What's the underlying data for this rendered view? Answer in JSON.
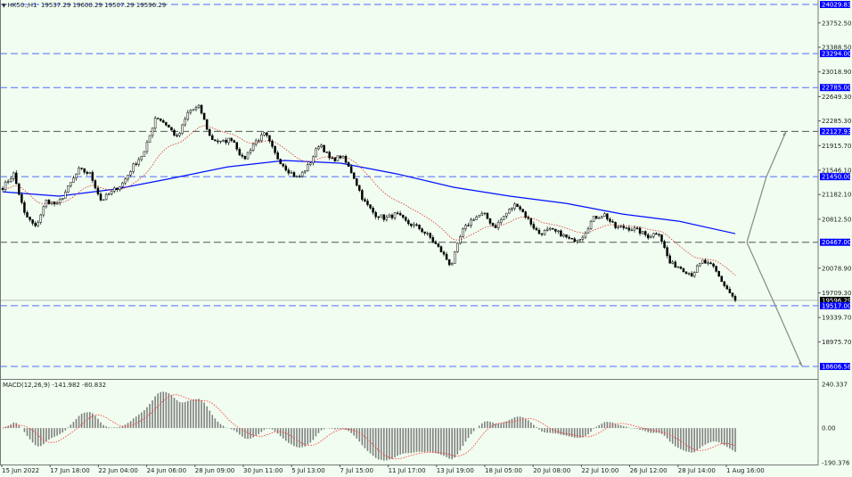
{
  "header": {
    "symbol": "HK50.,H1",
    "ohlc": "19537.29 19600.29 19507.29 19596.29",
    "menu_icon": "triangle-down-icon"
  },
  "colors": {
    "background": "#f0fdf0",
    "bull": "#000000",
    "bear": "#000000",
    "level_line": "#4f6bff",
    "level_label_bg": "#0000ff",
    "slow_ma": "#0010ff",
    "fast_ma": "#e03030",
    "macd_hist": "#808080",
    "macd_signal": "#ff3030",
    "projection": "#888888"
  },
  "chart_data": [
    {
      "type": "candlestick",
      "ylim": [
        18606.58,
        24029.83
      ],
      "y_ticks": [
        "24029.83",
        "23752.50",
        "23388.50",
        "23294.00",
        "23018.90",
        "22785.00",
        "22649.30",
        "22285.30",
        "22127.93",
        "21915.70",
        "21546.10",
        "21450.00",
        "21182.10",
        "20812.50",
        "20467.00",
        "20078.90",
        "19709.30",
        "19596.29",
        "19517.00",
        "19339.70",
        "18975.70",
        "18606.58"
      ],
      "x_ticks": [
        "15 Jun 2022",
        "17 Jun 18:00",
        "22 Jun 04:00",
        "24 Jun 06:00",
        "28 Jun 09:00",
        "30 Jun 11:00",
        "5 Jul 13:00",
        "7 Jul 15:00",
        "11 Jul 17:00",
        "13 Jul 19:00",
        "18 Jul 05:00",
        "20 Jul 08:00",
        "22 Jul 10:00",
        "26 Jul 12:00",
        "28 Jul 14:00",
        "1 Aug 16:00"
      ],
      "close_path": [
        21291,
        21491,
        20890,
        20690,
        21091,
        21024,
        21291,
        21558,
        21491,
        21091,
        21224,
        21358,
        21625,
        21825,
        22360,
        22226,
        22026,
        22427,
        22493,
        22026,
        21959,
        22026,
        21692,
        21959,
        22093,
        21759,
        21558,
        21425,
        21625,
        21959,
        21692,
        21759,
        21491,
        21091,
        20890,
        20824,
        20890,
        20757,
        20690,
        20556,
        20356,
        20115,
        20623,
        20824,
        20890,
        20690,
        20890,
        21050,
        20824,
        20596,
        20650,
        20596,
        20489,
        20556,
        20824,
        20890,
        20690,
        20690,
        20650,
        20556,
        20623,
        20155,
        20089,
        19982,
        20182,
        20089,
        19822,
        19596.29
      ],
      "slow_ma_path": [
        21224,
        21158,
        21264,
        21425,
        21598,
        21692,
        21652,
        21491,
        21291,
        21158,
        21050,
        20890,
        20783,
        20596
      ],
      "current_price": 19596.29,
      "levels_blue": [
        24029.83,
        23294.0,
        22785.0,
        21450.0,
        19517.0,
        18606.58
      ],
      "levels_dark": [
        22127.93,
        20467.0
      ],
      "projection": {
        "from": 20467.0,
        "up_mid": 21450.0,
        "up_end": 22127.93,
        "down_mid": 19517.0,
        "down_end": 18606.58
      }
    },
    {
      "type": "bar",
      "title": "MACD(12,26,9) -141.982 -80.832",
      "ylim": [
        -190.376,
        240.337
      ],
      "y_ticks": [
        "240.337",
        "0.00",
        "-190.376"
      ]
    }
  ]
}
